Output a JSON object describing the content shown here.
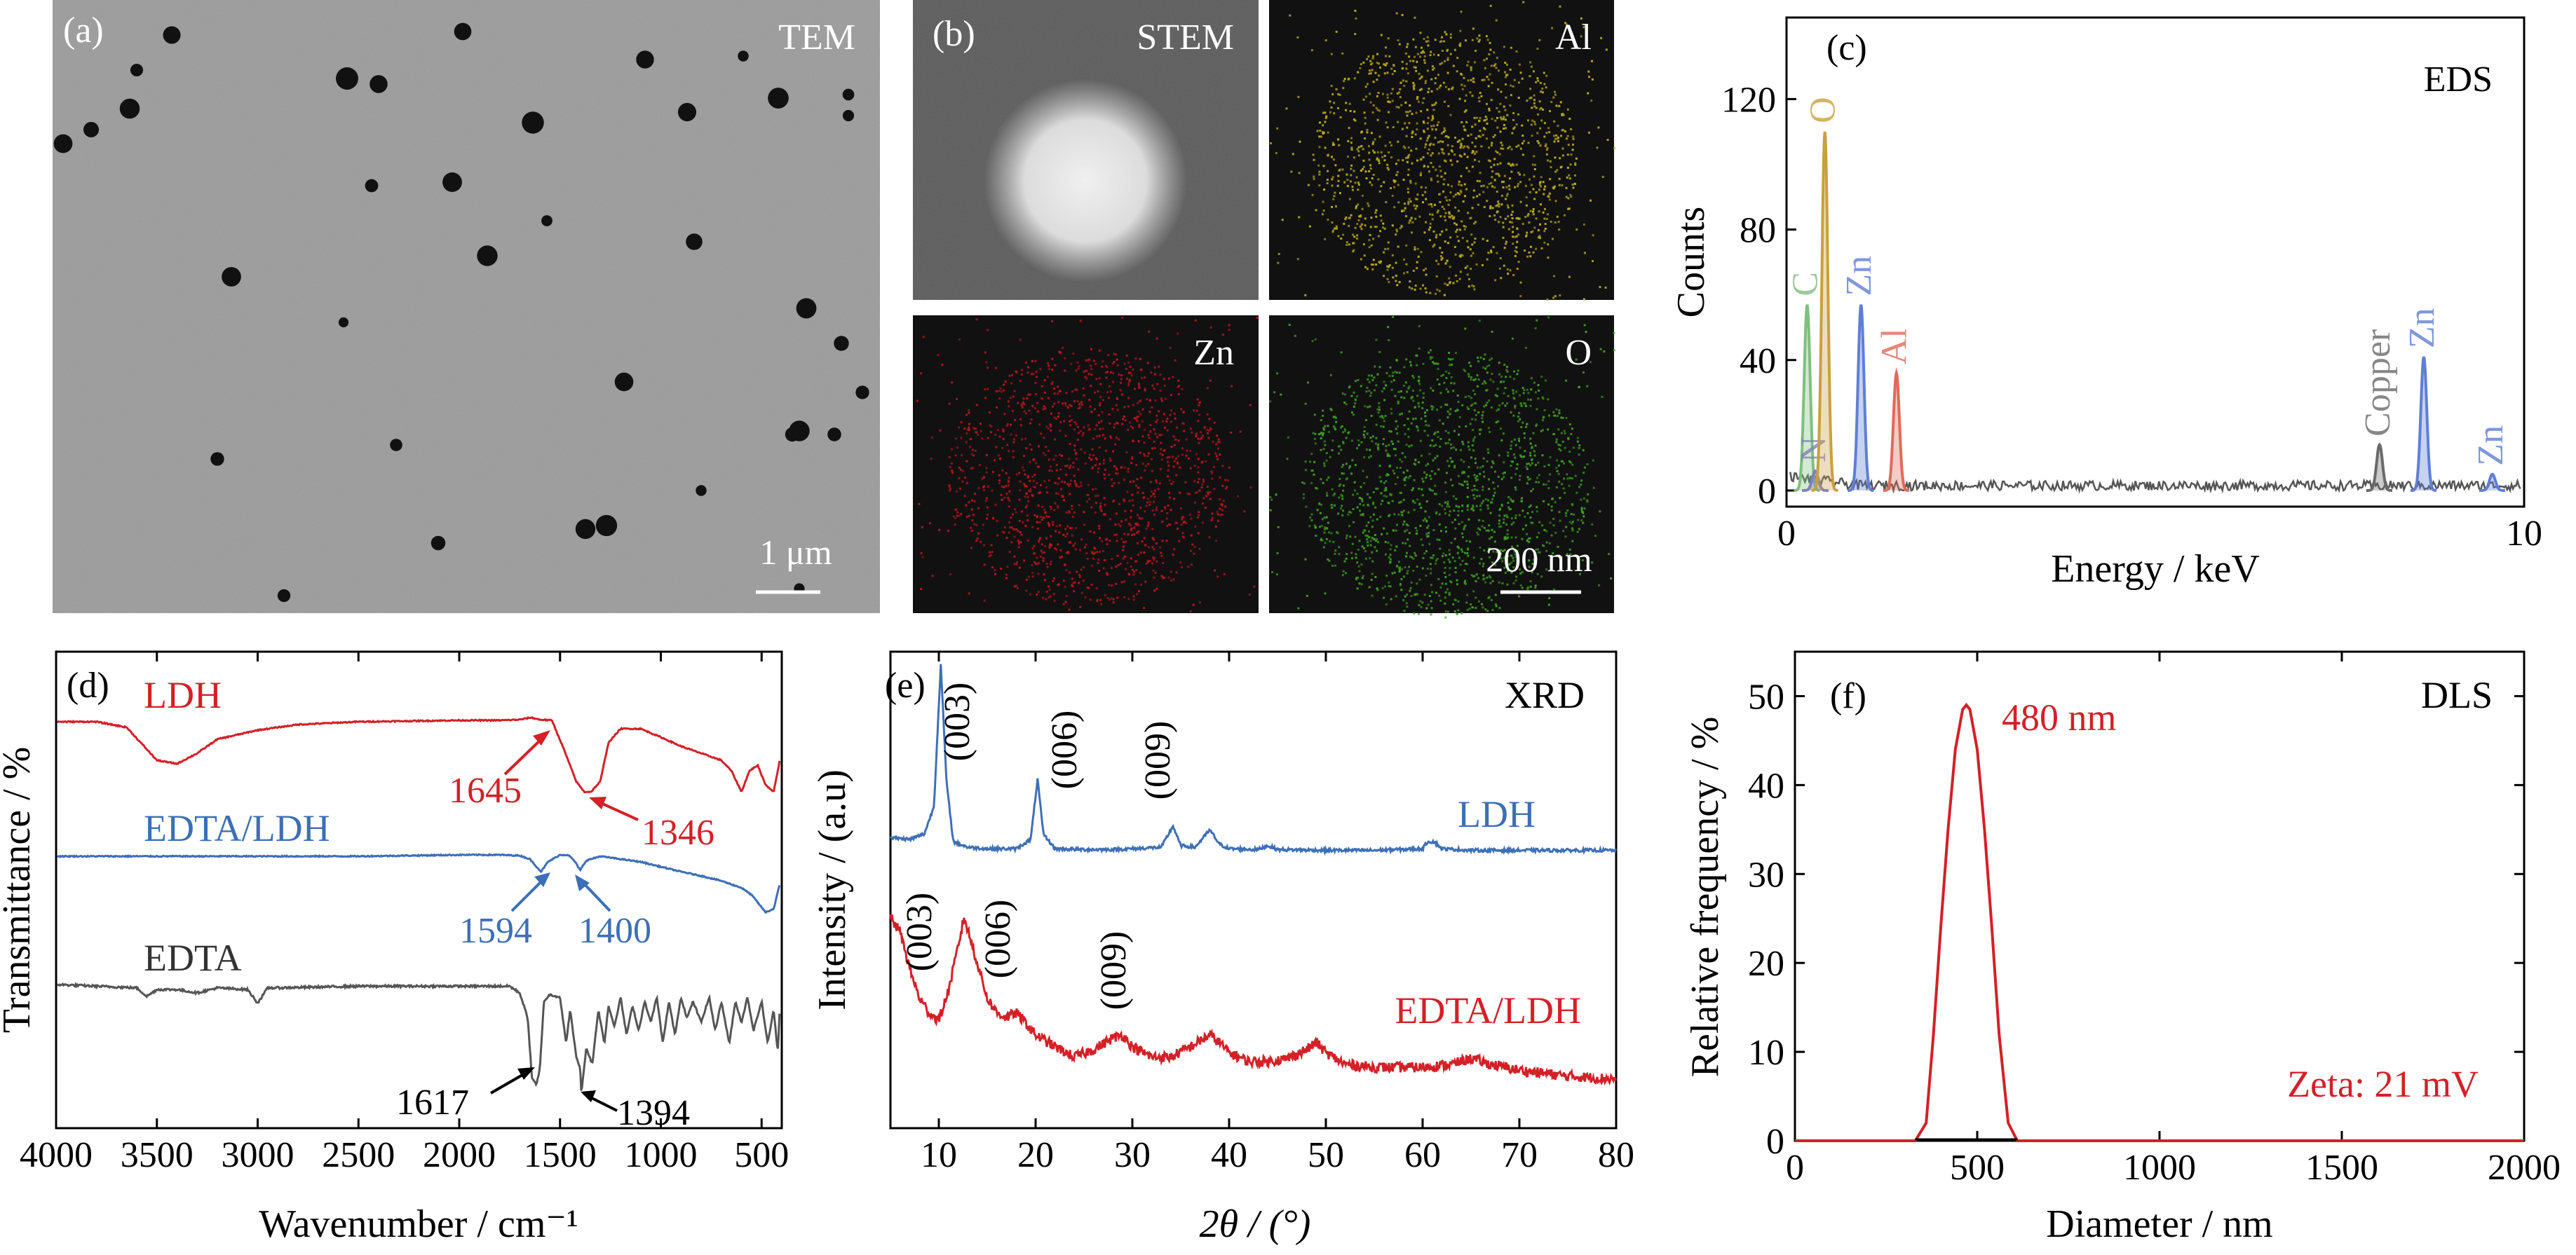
{
  "panels": {
    "a": {
      "label": "(a)",
      "title": "TEM",
      "scale_label": "1 μm"
    },
    "b": {
      "label": "(b)",
      "maps": [
        "STEM",
        "Al",
        "Zn",
        "O"
      ],
      "scale_label": "200 nm"
    }
  },
  "colors": {
    "tem_bg": "#9b9b9b",
    "stem_bg": "#5a5a5a",
    "map_bg": "#111111",
    "al": "#bfae1a",
    "zn": "#c0141e",
    "o": "#3ea11f",
    "ldh_red": "#d42027",
    "edta_ldh_blue": "#3d6fb6",
    "edta_gray": "#555555",
    "eds_C": "#7fbf7f",
    "eds_N": "#7f7fbf",
    "eds_O": "#c8a040",
    "eds_Zn": "#5f7fd6",
    "eds_Al": "#e06a5a",
    "eds_Cu": "#6a6a6a"
  },
  "chart_data": [
    {
      "id": "c",
      "panel_label": "(c)",
      "type": "line",
      "title": "EDS",
      "xlabel": "Energy / keV",
      "ylabel": "Counts",
      "xlim": [
        0,
        10
      ],
      "ylim": [
        0,
        145
      ],
      "xticks": [
        0,
        10
      ],
      "yticks": [
        0,
        40,
        80,
        120
      ],
      "baseline": 1.5,
      "peaks": [
        {
          "label": "C",
          "x": 0.28,
          "height": 57,
          "color": "#7fbf7f"
        },
        {
          "label": "N",
          "x": 0.39,
          "height": 6,
          "color": "#7f7fbf"
        },
        {
          "label": "O",
          "x": 0.52,
          "height": 110,
          "color": "#c8a040"
        },
        {
          "label": "Zn",
          "x": 1.01,
          "height": 57,
          "color": "#5f7fd6"
        },
        {
          "label": "Al",
          "x": 1.49,
          "height": 36,
          "color": "#e06a5a"
        },
        {
          "label": "Copper",
          "x": 8.04,
          "height": 14,
          "color": "#6a6a6a"
        },
        {
          "label": "Zn",
          "x": 8.64,
          "height": 41,
          "color": "#5f7fd6"
        },
        {
          "label": "Zn",
          "x": 9.57,
          "height": 5,
          "color": "#5f7fd6"
        }
      ]
    },
    {
      "id": "d",
      "panel_label": "(d)",
      "type": "line",
      "xlabel": "Wavenumber / cm⁻¹",
      "ylabel": "Transmittance / %",
      "xlim": [
        4000,
        400
      ],
      "reversed_x": true,
      "xticks": [
        4000,
        3500,
        3000,
        2500,
        2000,
        1500,
        1000,
        500
      ],
      "series": [
        {
          "name": "LDH",
          "color": "#d42027",
          "points": [
            [
              4000,
              0
            ],
            [
              3800,
              0
            ],
            [
              3650,
              -8
            ],
            [
              3500,
              -55
            ],
            [
              3400,
              -60
            ],
            [
              3300,
              -45
            ],
            [
              3200,
              -25
            ],
            [
              3000,
              -12
            ],
            [
              2800,
              -4
            ],
            [
              2500,
              0
            ],
            [
              2000,
              2
            ],
            [
              1800,
              2
            ],
            [
              1700,
              3
            ],
            [
              1645,
              6
            ],
            [
              1600,
              3
            ],
            [
              1540,
              2
            ],
            [
              1480,
              -40
            ],
            [
              1420,
              -85
            ],
            [
              1380,
              -100
            ],
            [
              1346,
              -100
            ],
            [
              1300,
              -85
            ],
            [
              1260,
              -30
            ],
            [
              1200,
              -10
            ],
            [
              1100,
              -10
            ],
            [
              1000,
              -22
            ],
            [
              900,
              -35
            ],
            [
              800,
              -45
            ],
            [
              700,
              -55
            ],
            [
              650,
              -70
            ],
            [
              600,
              -100
            ],
            [
              560,
              -70
            ],
            [
              520,
              -62
            ],
            [
              480,
              -90
            ],
            [
              440,
              -100
            ],
            [
              410,
              -55
            ]
          ]
        },
        {
          "name": "EDTA/LDH",
          "color": "#3d6fb6",
          "points": [
            [
              4000,
              0
            ],
            [
              3500,
              0
            ],
            [
              3000,
              0
            ],
            [
              2500,
              0
            ],
            [
              2000,
              2
            ],
            [
              1800,
              2
            ],
            [
              1700,
              1
            ],
            [
              1650,
              -4
            ],
            [
              1594,
              -22
            ],
            [
              1560,
              -8
            ],
            [
              1500,
              2
            ],
            [
              1460,
              2
            ],
            [
              1430,
              -6
            ],
            [
              1400,
              -20
            ],
            [
              1370,
              -6
            ],
            [
              1300,
              0
            ],
            [
              1200,
              -4
            ],
            [
              1100,
              -8
            ],
            [
              1000,
              -15
            ],
            [
              900,
              -22
            ],
            [
              800,
              -28
            ],
            [
              700,
              -35
            ],
            [
              600,
              -45
            ],
            [
              550,
              -55
            ],
            [
              480,
              -80
            ],
            [
              440,
              -75
            ],
            [
              410,
              -40
            ]
          ]
        },
        {
          "name": "EDTA",
          "color": "#555555",
          "points": [
            [
              4000,
              0
            ],
            [
              3800,
              -2
            ],
            [
              3600,
              -4
            ],
            [
              3550,
              -14
            ],
            [
              3500,
              -6
            ],
            [
              3400,
              -6
            ],
            [
              3300,
              -10
            ],
            [
              3200,
              -4
            ],
            [
              3050,
              -6
            ],
            [
              3000,
              -22
            ],
            [
              2950,
              -4
            ],
            [
              2900,
              -4
            ],
            [
              2500,
              -2
            ],
            [
              2000,
              -2
            ],
            [
              1750,
              -2
            ],
            [
              1700,
              -10
            ],
            [
              1660,
              -40
            ],
            [
              1640,
              -110
            ],
            [
              1617,
              -120
            ],
            [
              1600,
              -100
            ],
            [
              1580,
              -20
            ],
            [
              1550,
              -12
            ],
            [
              1500,
              -15
            ],
            [
              1470,
              -70
            ],
            [
              1450,
              -30
            ],
            [
              1420,
              -85
            ],
            [
              1400,
              -100
            ],
            [
              1394,
              -130
            ],
            [
              1370,
              -75
            ],
            [
              1340,
              -95
            ],
            [
              1310,
              -30
            ],
            [
              1280,
              -70
            ],
            [
              1260,
              -25
            ],
            [
              1230,
              -50
            ],
            [
              1200,
              -15
            ],
            [
              1170,
              -60
            ],
            [
              1140,
              -25
            ],
            [
              1110,
              -55
            ],
            [
              1080,
              -20
            ],
            [
              1050,
              -45
            ],
            [
              1020,
              -15
            ],
            [
              990,
              -70
            ],
            [
              960,
              -20
            ],
            [
              930,
              -60
            ],
            [
              900,
              -15
            ],
            [
              870,
              -40
            ],
            [
              840,
              -20
            ],
            [
              800,
              -45
            ],
            [
              760,
              -15
            ],
            [
              730,
              -55
            ],
            [
              700,
              -20
            ],
            [
              660,
              -70
            ],
            [
              630,
              -20
            ],
            [
              600,
              -45
            ],
            [
              570,
              -15
            ],
            [
              540,
              -55
            ],
            [
              500,
              -20
            ],
            [
              470,
              -70
            ],
            [
              440,
              -30
            ],
            [
              420,
              -80
            ],
            [
              410,
              -30
            ]
          ]
        }
      ],
      "annotations": [
        {
          "text": "LDH",
          "series": "LDH"
        },
        {
          "text": "1645",
          "series": "LDH"
        },
        {
          "text": "1346",
          "series": "LDH"
        },
        {
          "text": "EDTA/LDH",
          "series": "EDTA/LDH"
        },
        {
          "text": "1594",
          "series": "EDTA/LDH"
        },
        {
          "text": "1400",
          "series": "EDTA/LDH"
        },
        {
          "text": "EDTA",
          "series": "EDTA"
        },
        {
          "text": "1617",
          "series": "EDTA"
        },
        {
          "text": "1394",
          "series": "EDTA"
        }
      ]
    },
    {
      "id": "e",
      "panel_label": "(e)",
      "type": "line",
      "title": "XRD",
      "xlabel": "2θ / (°)",
      "ylabel": "Intensity / (a.u)",
      "xlim": [
        5,
        80
      ],
      "xticks": [
        10,
        20,
        30,
        40,
        50,
        60,
        70,
        80
      ],
      "series": [
        {
          "name": "LDH",
          "color": "#3d6fb6",
          "points": [
            [
              5,
              20
            ],
            [
              7,
              18
            ],
            [
              8.5,
              25
            ],
            [
              9.5,
              60
            ],
            [
              10.2,
              240
            ],
            [
              10.8,
              90
            ],
            [
              11.5,
              15
            ],
            [
              13,
              8
            ],
            [
              15,
              6
            ],
            [
              18,
              6
            ],
            [
              19.5,
              18
            ],
            [
              20.2,
              95
            ],
            [
              20.8,
              25
            ],
            [
              22,
              6
            ],
            [
              25,
              5
            ],
            [
              28,
              5
            ],
            [
              30,
              6
            ],
            [
              33,
              8
            ],
            [
              34.2,
              35
            ],
            [
              35,
              10
            ],
            [
              36.5,
              8
            ],
            [
              38,
              30
            ],
            [
              39,
              12
            ],
            [
              40,
              6
            ],
            [
              43,
              5
            ],
            [
              44,
              10
            ],
            [
              45,
              5
            ],
            [
              50,
              4
            ],
            [
              55,
              4
            ],
            [
              60,
              6
            ],
            [
              60.5,
              15
            ],
            [
              61.2,
              15
            ],
            [
              62,
              6
            ],
            [
              65,
              4
            ],
            [
              70,
              4
            ],
            [
              75,
              4
            ],
            [
              80,
              4
            ]
          ]
        },
        {
          "name": "EDTA/LDH",
          "color": "#d42027",
          "points": [
            [
              5,
              110
            ],
            [
              6,
              100
            ],
            [
              7,
              75
            ],
            [
              8,
              55
            ],
            [
              9,
              45
            ],
            [
              10,
              40
            ],
            [
              11,
              60
            ],
            [
              12,
              90
            ],
            [
              12.6,
              110
            ],
            [
              13.5,
              90
            ],
            [
              15,
              55
            ],
            [
              16,
              45
            ],
            [
              17,
              42
            ],
            [
              18,
              45
            ],
            [
              19,
              38
            ],
            [
              20,
              30
            ],
            [
              22,
              22
            ],
            [
              24,
              15
            ],
            [
              26,
              20
            ],
            [
              28,
              28
            ],
            [
              29,
              30
            ],
            [
              30,
              22
            ],
            [
              32,
              15
            ],
            [
              34,
              15
            ],
            [
              36,
              22
            ],
            [
              38,
              30
            ],
            [
              39,
              25
            ],
            [
              40,
              18
            ],
            [
              42,
              12
            ],
            [
              44,
              12
            ],
            [
              46,
              14
            ],
            [
              48,
              20
            ],
            [
              49,
              25
            ],
            [
              50,
              18
            ],
            [
              52,
              10
            ],
            [
              55,
              8
            ],
            [
              58,
              8
            ],
            [
              60,
              8
            ],
            [
              63,
              10
            ],
            [
              65,
              14
            ],
            [
              67,
              10
            ],
            [
              70,
              6
            ],
            [
              75,
              2
            ],
            [
              80,
              0
            ]
          ]
        }
      ],
      "annotations": [
        {
          "text": "(003)",
          "series": "LDH"
        },
        {
          "text": "(006)",
          "series": "LDH"
        },
        {
          "text": "(009)",
          "series": "LDH"
        },
        {
          "text": "LDH",
          "series": "LDH"
        },
        {
          "text": "(003)",
          "series": "EDTA/LDH"
        },
        {
          "text": "(006)",
          "series": "EDTA/LDH"
        },
        {
          "text": "(009)",
          "series": "EDTA/LDH"
        },
        {
          "text": "EDTA/LDH",
          "series": "EDTA/LDH"
        }
      ]
    },
    {
      "id": "f",
      "panel_label": "(f)",
      "type": "line",
      "title": "DLS",
      "xlabel": "Diameter / nm",
      "ylabel": "Relative frequency / %",
      "xlim": [
        0,
        2000
      ],
      "ylim": [
        0,
        55
      ],
      "xticks": [
        0,
        500,
        1000,
        1500,
        2000
      ],
      "yticks": [
        0,
        10,
        20,
        30,
        40,
        50
      ],
      "series": [
        {
          "name": "",
          "color": "#d42027",
          "points": [
            [
              0,
              0
            ],
            [
              330,
              0
            ],
            [
              360,
              2
            ],
            [
              380,
              12
            ],
            [
              400,
              24
            ],
            [
              420,
              35
            ],
            [
              440,
              44
            ],
            [
              460,
              48.5
            ],
            [
              470,
              49
            ],
            [
              480,
              48.5
            ],
            [
              500,
              44
            ],
            [
              520,
              35
            ],
            [
              540,
              24
            ],
            [
              560,
              12
            ],
            [
              585,
              2
            ],
            [
              610,
              0
            ],
            [
              2000,
              0
            ]
          ]
        }
      ],
      "peak_label": "480 nm",
      "zeta_label": "Zeta: 21 mV"
    }
  ]
}
